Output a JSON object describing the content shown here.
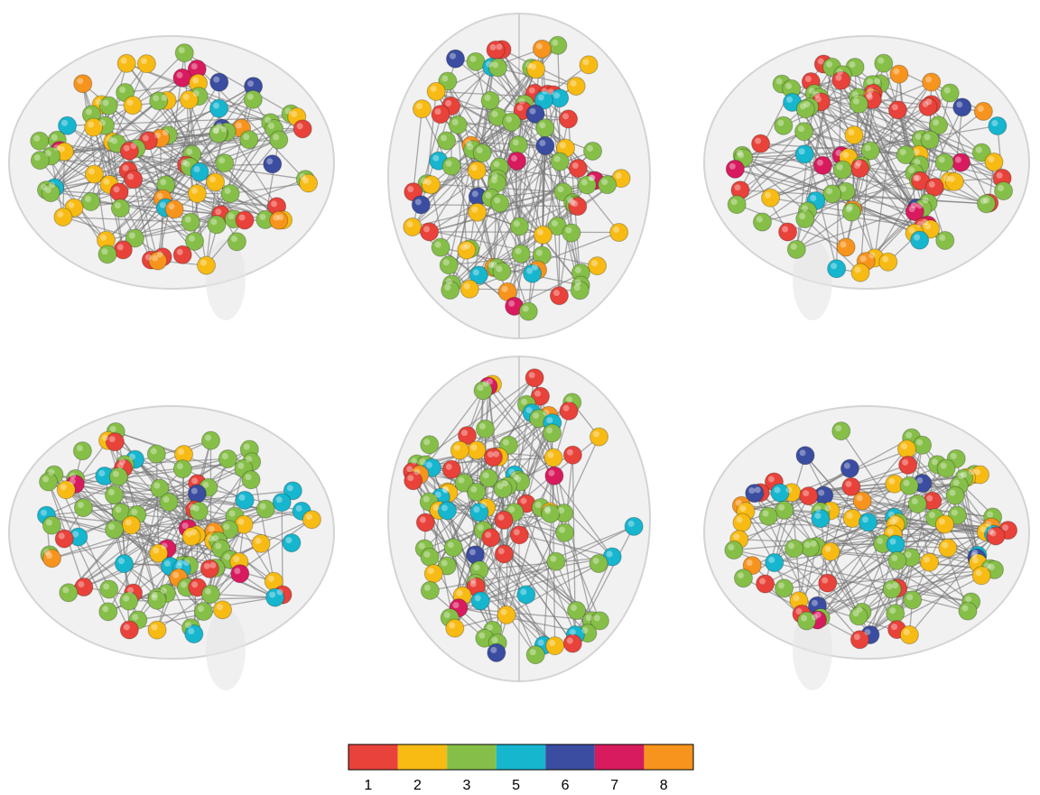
{
  "legend": {
    "items": [
      {
        "label": "1",
        "color": "#e8423a"
      },
      {
        "label": "2",
        "color": "#f7bb14"
      },
      {
        "label": "3",
        "color": "#86bf48"
      },
      {
        "label": "5",
        "color": "#16b6cf"
      },
      {
        "label": "6",
        "color": "#3b4da0"
      },
      {
        "label": "7",
        "color": "#d81b5e"
      },
      {
        "label": "8",
        "color": "#f7941d"
      }
    ]
  }
}
